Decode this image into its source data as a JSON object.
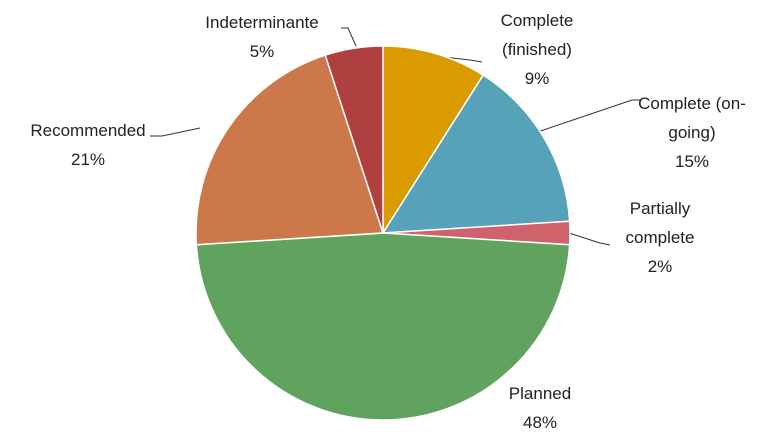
{
  "chart_data": {
    "type": "pie",
    "categories": [
      "Complete (finished)",
      "Complete (on-going)",
      "Partially complete",
      "Planned",
      "Recommended",
      "Indeterminante"
    ],
    "values": [
      9,
      15,
      2,
      48,
      21,
      5
    ],
    "value_labels": [
      "9%",
      "15%",
      "2%",
      "48%",
      "21%",
      "5%"
    ],
    "colors": [
      "#d99b00",
      "#56a2b8",
      "#d0626c",
      "#5fa35f",
      "#cd784a",
      "#b03f40"
    ]
  }
}
